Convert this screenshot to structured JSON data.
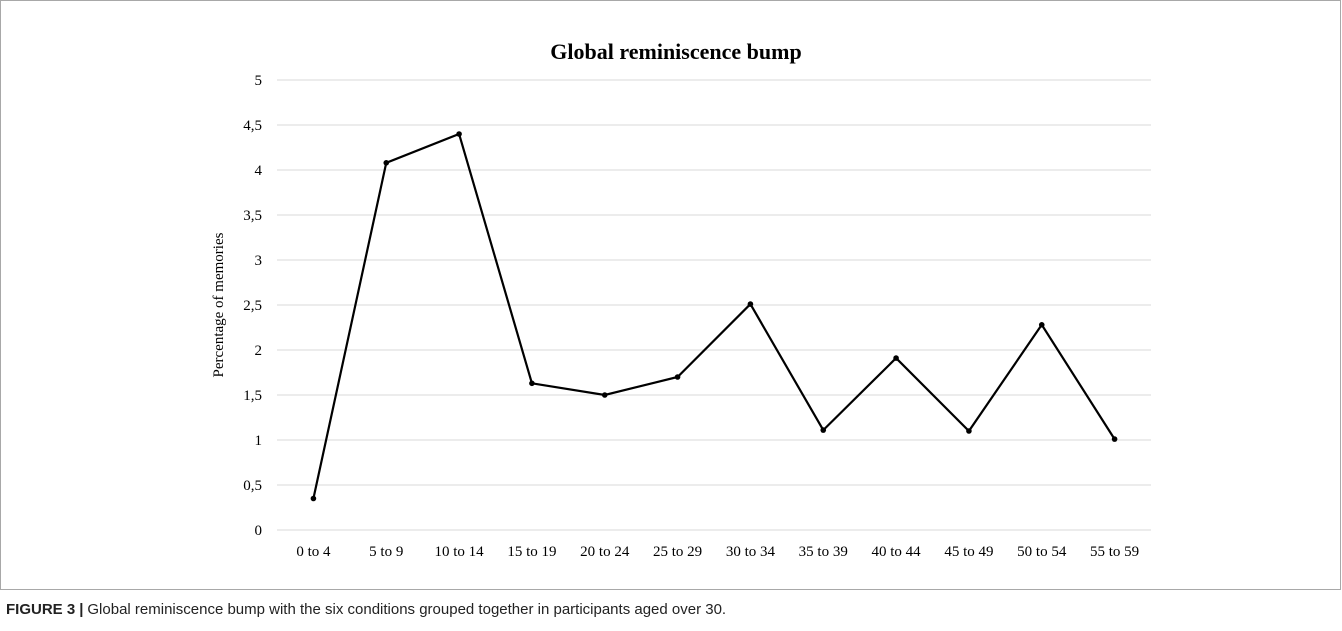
{
  "chart_data": {
    "type": "line",
    "title": "Global reminiscence bump",
    "xlabel": "",
    "ylabel": "Percentage of memories",
    "categories": [
      "0 to 4",
      "5 to 9",
      "10 to 14",
      "15 to 19",
      "20 to 24",
      "25 to 29",
      "30 to 34",
      "35 to 39",
      "40 to 44",
      "45 to 49",
      "50 to 54",
      "55 to 59"
    ],
    "series": [
      {
        "values": [
          0.35,
          4.08,
          4.4,
          1.63,
          1.5,
          1.7,
          2.51,
          1.11,
          1.91,
          1.1,
          2.28,
          1.01
        ]
      }
    ],
    "ylim": [
      0,
      5
    ],
    "yticks": [
      0,
      0.5,
      1,
      1.5,
      2,
      2.5,
      3,
      3.5,
      4,
      4.5,
      5
    ],
    "ytick_labels": [
      "0",
      "0,5",
      "1",
      "1,5",
      "2",
      "2,5",
      "3",
      "3,5",
      "4",
      "4,5",
      "5"
    ],
    "grid": true,
    "legend": "none",
    "line_color": "#000000",
    "grid_color": "#d9d9d9"
  },
  "caption": {
    "label": "FIGURE 3",
    "separator": "|",
    "text": "Global reminiscence bump with the six conditions grouped together in participants aged over 30."
  }
}
